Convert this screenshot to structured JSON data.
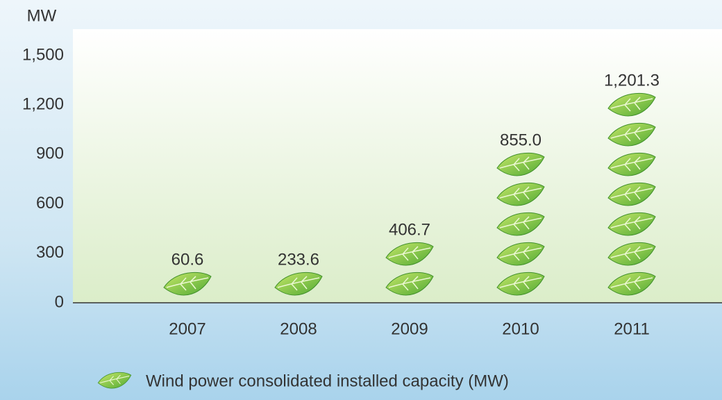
{
  "chart_data": {
    "type": "pictograph",
    "y_label": "MW",
    "categories": [
      "2007",
      "2008",
      "2009",
      "2010",
      "2011"
    ],
    "values": [
      60.6,
      233.6,
      406.7,
      855.0,
      1201.3
    ],
    "value_labels": [
      "60.6",
      "233.6",
      "406.7",
      "855.0",
      "1,201.3"
    ],
    "series_name": "Wind power consolidated installed capacity (MW)",
    "color": "#7cc242",
    "ylim": [
      0,
      1500
    ],
    "yticks": [
      0,
      300,
      600,
      900,
      {
        "value": 1200,
        "label": "1,200"
      },
      {
        "value": 1500,
        "label": "1,500"
      }
    ]
  }
}
